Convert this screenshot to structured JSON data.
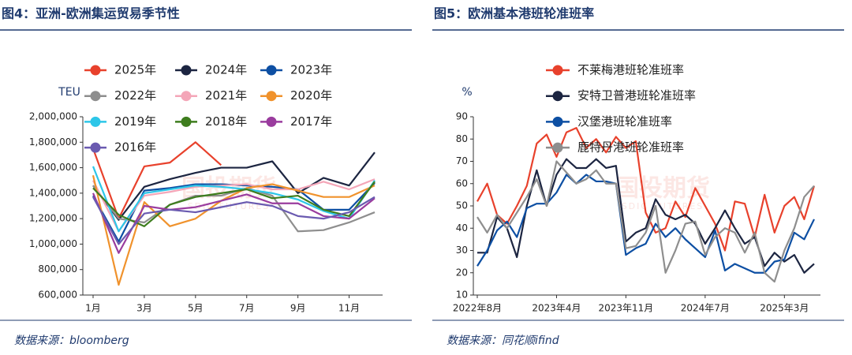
{
  "chart_data": [
    {
      "type": "line",
      "title": "图4：亚洲-欧洲集运贸易季节性",
      "y_label": "TEU",
      "source": "数据来源：bloomberg",
      "watermark": "国投期货",
      "watermark_sub": "SDIC FUTURES",
      "categories": [
        "1月",
        null,
        "3月",
        null,
        "5月",
        null,
        "7月",
        null,
        "9月",
        null,
        "11月",
        null
      ],
      "ylim": [
        600000,
        2000000
      ],
      "yticks": [
        {
          "value": 600000,
          "label": "600,000"
        },
        {
          "value": 800000,
          "label": "800,000"
        },
        {
          "value": 1000000,
          "label": "1,000,000"
        },
        {
          "value": 1200000,
          "label": "1,200,000"
        },
        {
          "value": 1400000,
          "label": "1,400,000"
        },
        {
          "value": 1600000,
          "label": "1,600,000"
        },
        {
          "value": 1800000,
          "label": "1,800,000"
        },
        {
          "value": 2000000,
          "label": "2,000,000"
        }
      ],
      "grid": false,
      "series": [
        {
          "name": "2025年",
          "color": "#e8412c",
          "values": [
            1750000,
            1200000,
            1610000,
            1640000,
            1800000,
            1620000,
            null,
            null,
            null,
            null,
            null,
            null
          ]
        },
        {
          "name": "2024年",
          "color": "#1c2541",
          "values": [
            1460000,
            1190000,
            1450000,
            1510000,
            1560000,
            1600000,
            1600000,
            1650000,
            1400000,
            1520000,
            1460000,
            1720000
          ]
        },
        {
          "name": "2023年",
          "color": "#0d4fa3",
          "values": [
            1380000,
            1020000,
            1420000,
            1440000,
            1470000,
            1470000,
            1460000,
            1450000,
            1430000,
            1270000,
            1270000,
            1480000
          ]
        },
        {
          "name": "2022年",
          "color": "#8e8e8e",
          "values": [
            1460000,
            1200000,
            1170000,
            1310000,
            1380000,
            1380000,
            1440000,
            1380000,
            1100000,
            1110000,
            1170000,
            1250000
          ]
        },
        {
          "name": "2021年",
          "color": "#f4a6b8",
          "values": [
            1500000,
            1100000,
            1380000,
            1410000,
            1450000,
            1460000,
            1470000,
            1430000,
            1430000,
            1490000,
            1430000,
            1510000
          ]
        },
        {
          "name": "2020年",
          "color": "#f0922c",
          "values": [
            1540000,
            680000,
            1330000,
            1140000,
            1200000,
            1340000,
            1440000,
            1470000,
            1420000,
            1370000,
            1370000,
            1460000
          ]
        },
        {
          "name": "2019年",
          "color": "#2dc6e8",
          "values": [
            1610000,
            1100000,
            1400000,
            1430000,
            1460000,
            1450000,
            1430000,
            1400000,
            1350000,
            1260000,
            1200000,
            1500000
          ]
        },
        {
          "name": "2018年",
          "color": "#3e7d1e",
          "values": [
            1440000,
            1230000,
            1140000,
            1310000,
            1370000,
            1400000,
            1430000,
            1360000,
            1380000,
            1270000,
            1220000,
            1490000
          ]
        },
        {
          "name": "2017年",
          "color": "#9a3c9e",
          "values": [
            1400000,
            930000,
            1300000,
            1270000,
            1290000,
            1340000,
            1390000,
            1320000,
            1320000,
            1220000,
            1200000,
            1360000
          ]
        },
        {
          "name": "2016年",
          "color": "#6a5ab0",
          "values": [
            1370000,
            1000000,
            1240000,
            1270000,
            1250000,
            1290000,
            1330000,
            1300000,
            1220000,
            1200000,
            1250000,
            1370000
          ]
        }
      ]
    },
    {
      "type": "line",
      "title": "图5：欧洲基本港班轮准班率",
      "y_label": "%",
      "source": "数据来源：同花顺ifind",
      "watermark": "国投期货",
      "watermark_sub": "SDIC FUTURES",
      "categories": [
        "2022年8月",
        null,
        null,
        null,
        null,
        null,
        null,
        null,
        "2023年4月",
        null,
        null,
        null,
        null,
        null,
        null,
        "2023年11月",
        null,
        null,
        null,
        null,
        null,
        null,
        null,
        "2024年7月",
        null,
        null,
        null,
        null,
        null,
        null,
        null,
        "2025年3月",
        null,
        null,
        null
      ],
      "ylim": [
        10,
        90
      ],
      "yticks": [
        10,
        20,
        30,
        40,
        50,
        60,
        70,
        80,
        90
      ],
      "grid": false,
      "series": [
        {
          "name": "不莱梅港班轮准班率",
          "color": "#e8412c",
          "values": [
            52,
            60,
            46,
            42,
            50,
            59,
            78,
            82,
            72,
            83,
            85,
            76,
            80,
            74,
            81,
            76,
            79,
            47,
            38,
            40,
            52,
            45,
            58,
            50,
            42,
            30,
            52,
            51,
            36,
            55,
            38,
            50,
            54,
            44,
            59
          ]
        },
        {
          "name": "安特卫普港班轮准班率",
          "color": "#1c2541",
          "values": [
            29,
            29,
            45,
            40,
            27,
            50,
            66,
            50,
            64,
            71,
            67,
            67,
            71,
            67,
            68,
            34,
            38,
            40,
            53,
            46,
            44,
            46,
            42,
            33,
            40,
            48,
            40,
            33,
            36,
            23,
            29,
            25,
            28,
            20,
            24
          ]
        },
        {
          "name": "汉堡港班轮准班率",
          "color": "#0d4fa3",
          "values": [
            23,
            30,
            39,
            43,
            36,
            49,
            51,
            51,
            56,
            64,
            60,
            64,
            61,
            61,
            60,
            28,
            31,
            33,
            42,
            36,
            40,
            35,
            31,
            27,
            39,
            21,
            24,
            22,
            20,
            20,
            25,
            26,
            38,
            35,
            44
          ]
        },
        {
          "name": "鹿特丹港班轮准班率",
          "color": "#8e8e8e",
          "values": [
            45,
            38,
            46,
            40,
            47,
            54,
            62,
            50,
            70,
            65,
            60,
            62,
            66,
            60,
            60,
            31,
            32,
            38,
            50,
            20,
            30,
            42,
            43,
            28,
            36,
            40,
            38,
            29,
            38,
            20,
            16,
            30,
            40,
            54,
            59
          ]
        }
      ]
    }
  ]
}
